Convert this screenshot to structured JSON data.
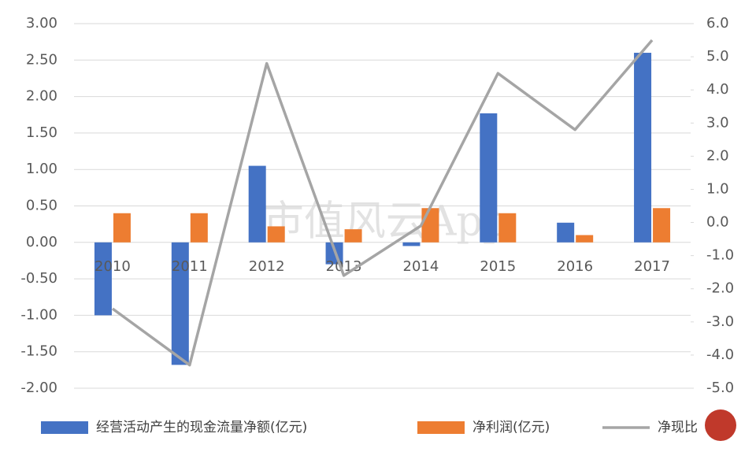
{
  "chart_data": {
    "type": "bar-line",
    "categories": [
      "2010",
      "2011",
      "2012",
      "2013",
      "2014",
      "2015",
      "2016",
      "2017"
    ],
    "series": [
      {
        "name": "经营活动产生的现金流量净额(亿元)",
        "color": "#4472c4",
        "type": "bar",
        "values": [
          -1.0,
          -1.68,
          1.05,
          -0.3,
          -0.05,
          1.77,
          0.27,
          2.6
        ]
      },
      {
        "name": "净利润(亿元)",
        "color": "#ed7d31",
        "type": "bar",
        "values": [
          0.4,
          0.4,
          0.22,
          0.18,
          0.47,
          0.4,
          0.1,
          0.47
        ]
      },
      {
        "name": "净现比",
        "color": "#a5a5a5",
        "type": "line",
        "axis": "y2",
        "values": [
          -2.6,
          -4.3,
          4.8,
          -1.6,
          -0.1,
          4.5,
          2.8,
          5.5
        ]
      }
    ],
    "ylim": [
      -2,
      3
    ],
    "yticks": [
      {
        "value": -2,
        "label": "-2.00"
      },
      {
        "value": -1.5,
        "label": "-1.50"
      },
      {
        "value": -1,
        "label": "-1.00"
      },
      {
        "value": -0.5,
        "label": "-0.50"
      },
      {
        "value": 0,
        "label": "0.00"
      },
      {
        "value": 0.5,
        "label": "0.50"
      },
      {
        "value": 1,
        "label": "1.00"
      },
      {
        "value": 1.5,
        "label": "1.50"
      },
      {
        "value": 2,
        "label": "2.00"
      },
      {
        "value": 2.5,
        "label": "2.50"
      },
      {
        "value": 3,
        "label": "3.00"
      }
    ],
    "y2lim": [
      -5,
      6
    ],
    "y2ticks": [
      {
        "value": -5,
        "label": "-5.0"
      },
      {
        "value": -4,
        "label": "-4.0"
      },
      {
        "value": -3,
        "label": "-3.0"
      },
      {
        "value": -2,
        "label": "-2.0"
      },
      {
        "value": -1,
        "label": "-1.0"
      },
      {
        "value": 0,
        "label": "0.0"
      },
      {
        "value": 1,
        "label": "1.0"
      },
      {
        "value": 2,
        "label": "2.0"
      },
      {
        "value": 3,
        "label": "3.0"
      },
      {
        "value": 4,
        "label": "4.0"
      },
      {
        "value": 5,
        "label": "5.0"
      },
      {
        "value": 6,
        "label": "6.0"
      }
    ],
    "grid": true,
    "watermark": "市值风云App"
  }
}
